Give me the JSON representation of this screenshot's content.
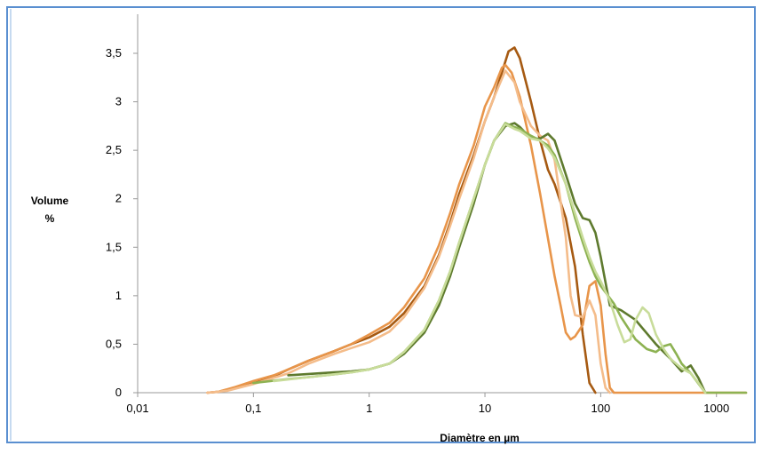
{
  "chart_data": {
    "type": "line",
    "title": "",
    "xlabel": "Diamètre en µm",
    "ylabel_line1": "Volume",
    "ylabel_line2": "%",
    "x_scale": "log",
    "xlim": [
      0.01,
      1800
    ],
    "ylim": [
      0,
      3.5
    ],
    "grid": false,
    "legend": "none",
    "x_ticks": [
      {
        "value": 0.01,
        "label": "0,01"
      },
      {
        "value": 0.1,
        "label": "0,1"
      },
      {
        "value": 1,
        "label": "1"
      },
      {
        "value": 10,
        "label": "10"
      },
      {
        "value": 100,
        "label": "100"
      },
      {
        "value": 1000,
        "label": "1000"
      }
    ],
    "y_ticks": [
      {
        "value": 0,
        "label": "0"
      },
      {
        "value": 0.5,
        "label": "0,5"
      },
      {
        "value": 1,
        "label": "1"
      },
      {
        "value": 1.5,
        "label": "1,5"
      },
      {
        "value": 2,
        "label": "2"
      },
      {
        "value": 2.5,
        "label": "2,5"
      },
      {
        "value": 3,
        "label": "3"
      },
      {
        "value": 3.5,
        "label": "3,5"
      }
    ],
    "series": [
      {
        "color": "#a65a12",
        "points": [
          [
            0.04,
            0
          ],
          [
            0.05,
            0.01
          ],
          [
            0.07,
            0.05
          ],
          [
            0.1,
            0.1
          ],
          [
            0.15,
            0.17
          ],
          [
            0.2,
            0.24
          ],
          [
            0.3,
            0.33
          ],
          [
            0.5,
            0.43
          ],
          [
            0.7,
            0.5
          ],
          [
            1,
            0.57
          ],
          [
            1.5,
            0.68
          ],
          [
            2,
            0.82
          ],
          [
            3,
            1.1
          ],
          [
            4,
            1.42
          ],
          [
            5,
            1.75
          ],
          [
            6,
            2.05
          ],
          [
            8,
            2.45
          ],
          [
            10,
            2.8
          ],
          [
            12,
            3.05
          ],
          [
            14,
            3.3
          ],
          [
            16,
            3.52
          ],
          [
            18,
            3.56
          ],
          [
            20,
            3.45
          ],
          [
            25,
            3.0
          ],
          [
            30,
            2.6
          ],
          [
            35,
            2.3
          ],
          [
            40,
            2.15
          ],
          [
            50,
            1.8
          ],
          [
            60,
            1.3
          ],
          [
            70,
            0.6
          ],
          [
            80,
            0.1
          ],
          [
            90,
            0
          ]
        ]
      },
      {
        "color": "#e8954a",
        "points": [
          [
            0.04,
            0
          ],
          [
            0.05,
            0.01
          ],
          [
            0.07,
            0.06
          ],
          [
            0.1,
            0.12
          ],
          [
            0.15,
            0.18
          ],
          [
            0.2,
            0.24
          ],
          [
            0.3,
            0.33
          ],
          [
            0.5,
            0.43
          ],
          [
            0.7,
            0.5
          ],
          [
            1,
            0.6
          ],
          [
            1.5,
            0.72
          ],
          [
            2,
            0.88
          ],
          [
            3,
            1.18
          ],
          [
            4,
            1.52
          ],
          [
            5,
            1.85
          ],
          [
            6,
            2.15
          ],
          [
            8,
            2.55
          ],
          [
            10,
            2.95
          ],
          [
            12,
            3.15
          ],
          [
            14,
            3.35
          ],
          [
            15,
            3.38
          ],
          [
            17,
            3.3
          ],
          [
            20,
            3.05
          ],
          [
            25,
            2.55
          ],
          [
            30,
            2.05
          ],
          [
            40,
            1.2
          ],
          [
            45,
            0.9
          ],
          [
            50,
            0.62
          ],
          [
            55,
            0.55
          ],
          [
            60,
            0.58
          ],
          [
            70,
            0.7
          ],
          [
            80,
            1.1
          ],
          [
            90,
            1.15
          ],
          [
            100,
            0.9
          ],
          [
            110,
            0.4
          ],
          [
            120,
            0.05
          ],
          [
            130,
            0
          ],
          [
            1800,
            0
          ]
        ]
      },
      {
        "color": "#f4bc8a",
        "points": [
          [
            0.04,
            0
          ],
          [
            0.06,
            0.02
          ],
          [
            0.1,
            0.09
          ],
          [
            0.2,
            0.2
          ],
          [
            0.3,
            0.3
          ],
          [
            0.5,
            0.4
          ],
          [
            0.7,
            0.46
          ],
          [
            1,
            0.52
          ],
          [
            1.5,
            0.63
          ],
          [
            2,
            0.78
          ],
          [
            3,
            1.08
          ],
          [
            4,
            1.4
          ],
          [
            5,
            1.72
          ],
          [
            6,
            2.0
          ],
          [
            8,
            2.42
          ],
          [
            10,
            2.8
          ],
          [
            12,
            3.05
          ],
          [
            15,
            3.32
          ],
          [
            18,
            3.2
          ],
          [
            20,
            3.0
          ],
          [
            25,
            2.75
          ],
          [
            30,
            2.65
          ],
          [
            35,
            2.6
          ],
          [
            40,
            2.4
          ],
          [
            50,
            1.6
          ],
          [
            55,
            1.0
          ],
          [
            60,
            0.8
          ],
          [
            70,
            0.78
          ],
          [
            80,
            0.95
          ],
          [
            90,
            0.8
          ],
          [
            100,
            0.3
          ],
          [
            110,
            0.05
          ],
          [
            120,
            0
          ]
        ]
      },
      {
        "color": "#5e7a2e",
        "points": [
          [
            0.2,
            0.18
          ],
          [
            0.5,
            0.21
          ],
          [
            0.7,
            0.22
          ],
          [
            1,
            0.24
          ],
          [
            1.5,
            0.3
          ],
          [
            2,
            0.4
          ],
          [
            3,
            0.62
          ],
          [
            4,
            0.9
          ],
          [
            5,
            1.2
          ],
          [
            6,
            1.5
          ],
          [
            8,
            1.95
          ],
          [
            10,
            2.35
          ],
          [
            12,
            2.6
          ],
          [
            15,
            2.75
          ],
          [
            18,
            2.78
          ],
          [
            20,
            2.74
          ],
          [
            25,
            2.62
          ],
          [
            30,
            2.62
          ],
          [
            35,
            2.67
          ],
          [
            40,
            2.6
          ],
          [
            50,
            2.25
          ],
          [
            60,
            1.95
          ],
          [
            70,
            1.8
          ],
          [
            80,
            1.78
          ],
          [
            90,
            1.65
          ],
          [
            100,
            1.4
          ],
          [
            120,
            0.9
          ],
          [
            150,
            0.85
          ],
          [
            200,
            0.75
          ],
          [
            300,
            0.5
          ],
          [
            400,
            0.35
          ],
          [
            500,
            0.22
          ],
          [
            600,
            0.28
          ],
          [
            700,
            0.15
          ],
          [
            800,
            0
          ]
        ]
      },
      {
        "color": "#8db252",
        "points": [
          [
            0.1,
            0.1
          ],
          [
            0.2,
            0.14
          ],
          [
            0.3,
            0.16
          ],
          [
            0.5,
            0.19
          ],
          [
            0.7,
            0.21
          ],
          [
            1,
            0.24
          ],
          [
            1.5,
            0.3
          ],
          [
            2,
            0.42
          ],
          [
            3,
            0.65
          ],
          [
            4,
            0.95
          ],
          [
            5,
            1.25
          ],
          [
            6,
            1.55
          ],
          [
            8,
            2.0
          ],
          [
            10,
            2.35
          ],
          [
            12,
            2.6
          ],
          [
            15,
            2.78
          ],
          [
            17,
            2.75
          ],
          [
            20,
            2.72
          ],
          [
            25,
            2.65
          ],
          [
            30,
            2.6
          ],
          [
            35,
            2.55
          ],
          [
            40,
            2.45
          ],
          [
            50,
            2.15
          ],
          [
            60,
            1.8
          ],
          [
            70,
            1.55
          ],
          [
            80,
            1.35
          ],
          [
            90,
            1.2
          ],
          [
            100,
            1.1
          ],
          [
            130,
            0.92
          ],
          [
            150,
            0.78
          ],
          [
            200,
            0.55
          ],
          [
            250,
            0.45
          ],
          [
            300,
            0.42
          ],
          [
            350,
            0.48
          ],
          [
            400,
            0.5
          ],
          [
            450,
            0.4
          ],
          [
            500,
            0.3
          ],
          [
            600,
            0.2
          ],
          [
            800,
            0
          ],
          [
            1800,
            0
          ]
        ]
      },
      {
        "color": "#c8dc9a",
        "points": [
          [
            0.15,
            0.12
          ],
          [
            0.3,
            0.16
          ],
          [
            0.5,
            0.19
          ],
          [
            0.7,
            0.21
          ],
          [
            1,
            0.24
          ],
          [
            1.5,
            0.3
          ],
          [
            2,
            0.42
          ],
          [
            3,
            0.65
          ],
          [
            4,
            0.95
          ],
          [
            5,
            1.25
          ],
          [
            6,
            1.55
          ],
          [
            8,
            2.0
          ],
          [
            10,
            2.35
          ],
          [
            12,
            2.6
          ],
          [
            15,
            2.77
          ],
          [
            18,
            2.72
          ],
          [
            20,
            2.7
          ],
          [
            25,
            2.62
          ],
          [
            30,
            2.6
          ],
          [
            35,
            2.52
          ],
          [
            40,
            2.42
          ],
          [
            50,
            2.15
          ],
          [
            60,
            1.85
          ],
          [
            70,
            1.6
          ],
          [
            80,
            1.4
          ],
          [
            90,
            1.25
          ],
          [
            100,
            1.15
          ],
          [
            120,
            0.95
          ],
          [
            140,
            0.7
          ],
          [
            160,
            0.52
          ],
          [
            180,
            0.55
          ],
          [
            200,
            0.75
          ],
          [
            230,
            0.88
          ],
          [
            260,
            0.82
          ],
          [
            300,
            0.6
          ],
          [
            350,
            0.45
          ],
          [
            400,
            0.35
          ],
          [
            500,
            0.25
          ],
          [
            600,
            0.2
          ],
          [
            700,
            0.1
          ],
          [
            800,
            0
          ]
        ]
      }
    ]
  }
}
